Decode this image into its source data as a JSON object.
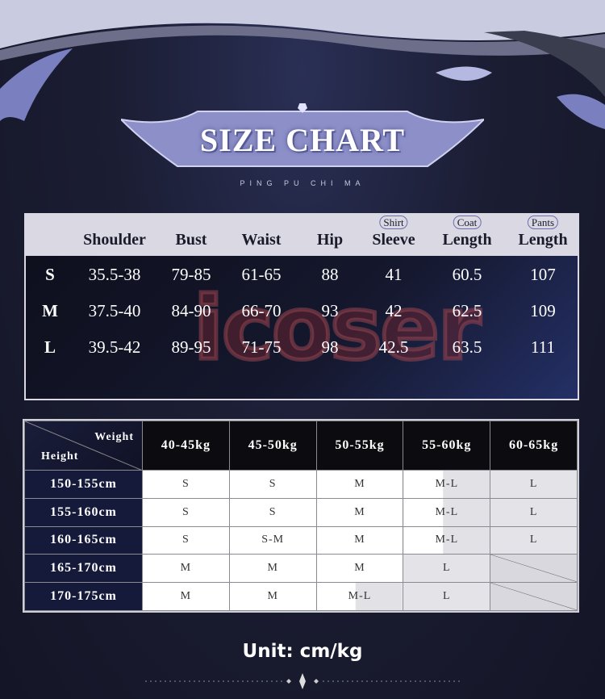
{
  "header": {
    "title": "SIZE CHART",
    "subtitle": "PING PU CHI MA"
  },
  "watermark": "icoser",
  "measurements": {
    "columns": [
      {
        "top": "",
        "label": "Shoulder"
      },
      {
        "top": "",
        "label": "Bust"
      },
      {
        "top": "",
        "label": "Waist"
      },
      {
        "top": "",
        "label": "Hip"
      },
      {
        "top": "Shirt",
        "label": "Sleeve"
      },
      {
        "top": "Coat",
        "label": "Length"
      },
      {
        "top": "Pants",
        "label": "Length"
      }
    ],
    "rows": [
      {
        "size": "S",
        "values": [
          "35.5-38",
          "79-85",
          "61-65",
          "88",
          "41",
          "60.5",
          "107"
        ]
      },
      {
        "size": "M",
        "values": [
          "37.5-40",
          "84-90",
          "66-70",
          "93",
          "42",
          "62.5",
          "109"
        ]
      },
      {
        "size": "L",
        "values": [
          "39.5-42",
          "89-95",
          "71-75",
          "98",
          "42.5",
          "63.5",
          "111"
        ]
      }
    ]
  },
  "recommendation": {
    "corner_weight": "Weight",
    "corner_height": "Height",
    "weights": [
      "40-45kg",
      "45-50kg",
      "50-55kg",
      "55-60kg",
      "60-65kg"
    ],
    "rows": [
      {
        "height": "150-155cm",
        "sizes": [
          "S",
          "S",
          "M",
          "M-L",
          "L"
        ]
      },
      {
        "height": "155-160cm",
        "sizes": [
          "S",
          "S",
          "M",
          "M-L",
          "L"
        ]
      },
      {
        "height": "160-165cm",
        "sizes": [
          "S",
          "S-M",
          "M",
          "M-L",
          "L"
        ]
      },
      {
        "height": "165-170cm",
        "sizes": [
          "M",
          "M",
          "M",
          "L",
          ""
        ]
      },
      {
        "height": "170-175cm",
        "sizes": [
          "M",
          "M",
          "M-L",
          "L",
          ""
        ]
      }
    ]
  },
  "footer": {
    "unit": "Unit: cm/kg"
  },
  "colors": {
    "background": "#17182a",
    "header_band": "#d9d8e3",
    "row_header": "#15193a",
    "accent": "#8a8fd0"
  }
}
